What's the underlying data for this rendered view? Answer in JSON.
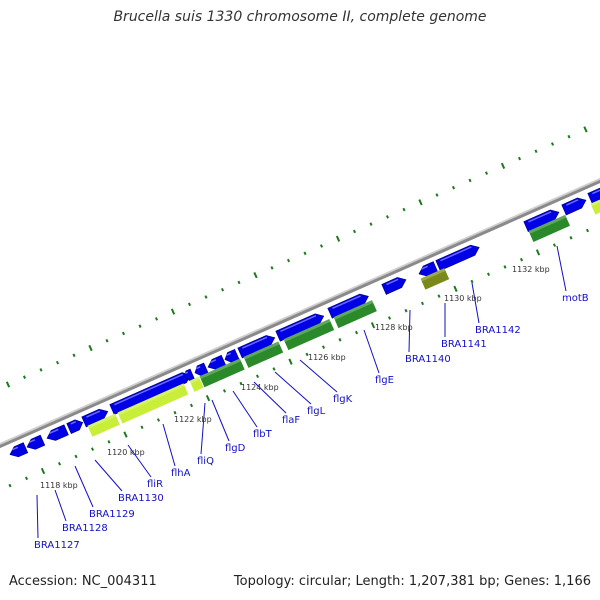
{
  "title": "Brucella suis 1330 chromosome II, complete genome",
  "footer": {
    "accession": "Accession: NC_004311",
    "summary": "Topology: circular; Length: 1,207,381 bp; Genes: 1,166"
  },
  "colors": {
    "backbone": "#8a8a8a",
    "gene": "#0000e6",
    "cds_dark": "#2a8a2a",
    "cds_light": "#c8ee3a",
    "cds_olive": "#7a8a18",
    "tick": "#1e7a1e",
    "label": "#1010c8"
  },
  "tick_labels": [
    "1118 kbp",
    "1120 kbp",
    "1122 kbp",
    "1124 kbp",
    "1126 kbp",
    "1128 kbp",
    "1130 kbp",
    "1132 kbp"
  ],
  "gene_labels": [
    "BRA1127",
    "BRA1128",
    "BRA1129",
    "BRA1130",
    "fliR",
    "flhA",
    "fliQ",
    "flgD",
    "flbT",
    "flaF",
    "flgL",
    "flgK",
    "flgE",
    "BRA1140",
    "BRA1141",
    "BRA1142",
    "motB"
  ]
}
